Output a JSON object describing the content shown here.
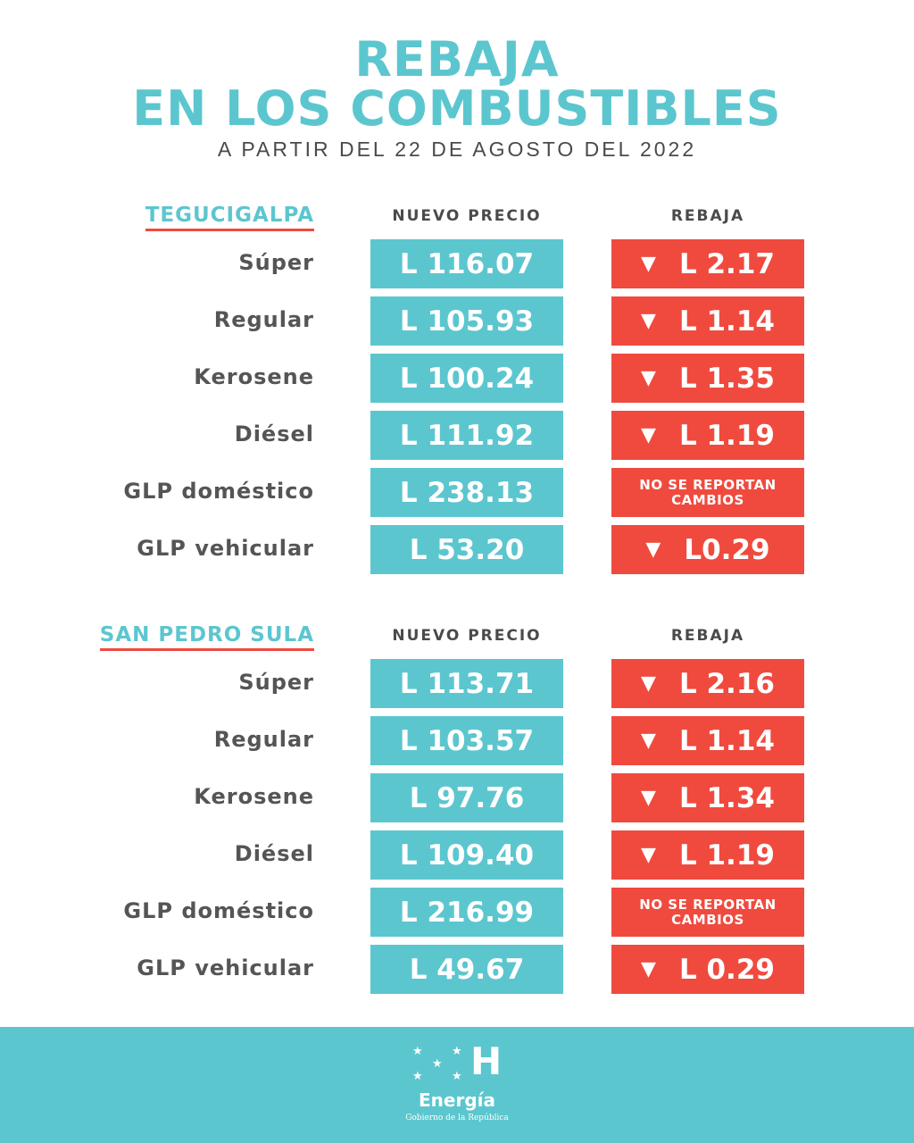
{
  "title_line1": "REBAJA",
  "title_line2": "EN LOS COMBUSTIBLES",
  "subtitle": "A PARTIR DEL 22 DE AGOSTO DEL 2022",
  "colors": {
    "teal": "#5cc6cf",
    "red": "#f04a3e",
    "text": "#555555"
  },
  "sections": [
    {
      "city": "TEGUCIGALPA",
      "col_price": "NUEVO PRECIO",
      "col_rebaja": "REBAJA",
      "rows": [
        {
          "fuel": "Súper",
          "price": "L 116.07",
          "rebaja": "L 2.17"
        },
        {
          "fuel": "Regular",
          "price": "L 105.93",
          "rebaja": "L 1.14"
        },
        {
          "fuel": "Kerosene",
          "price": "L 100.24",
          "rebaja": "L 1.35"
        },
        {
          "fuel": "Diésel",
          "price": "L 111.92",
          "rebaja": "L 1.19"
        },
        {
          "fuel": "GLP doméstico",
          "price": "L 238.13",
          "note": [
            "NO SE REPORTAN",
            "CAMBIOS"
          ]
        },
        {
          "fuel": "GLP vehicular",
          "price": "L 53.20",
          "rebaja": "L0.29"
        }
      ]
    },
    {
      "city": "SAN PEDRO SULA",
      "col_price": "NUEVO PRECIO",
      "col_rebaja": "REBAJA",
      "rows": [
        {
          "fuel": "Súper",
          "price": "L 113.71",
          "rebaja": "L 2.16"
        },
        {
          "fuel": "Regular",
          "price": "L 103.57",
          "rebaja": "L 1.14"
        },
        {
          "fuel": "Kerosene",
          "price": "L 97.76",
          "rebaja": "L 1.34"
        },
        {
          "fuel": "Diésel",
          "price": "L 109.40",
          "rebaja": "L 1.19"
        },
        {
          "fuel": "GLP doméstico",
          "price": "L 216.99",
          "note": [
            "NO SE REPORTAN",
            "CAMBIOS"
          ]
        },
        {
          "fuel": "GLP vehicular",
          "price": "L 49.67",
          "rebaja": "L 0.29"
        }
      ]
    }
  ],
  "footer": {
    "logo_letter": "H",
    "brand": "Energía",
    "tagline": "Gobierno de la República",
    "icon": "five-stars-icon",
    "arrow_icon": "triangle-down-icon"
  }
}
